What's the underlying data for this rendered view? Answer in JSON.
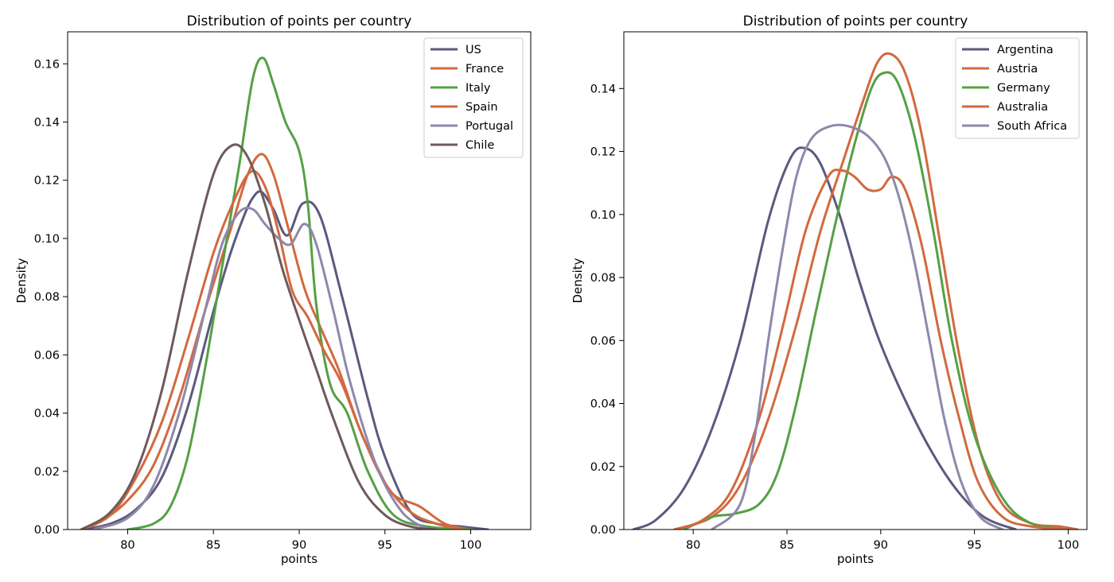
{
  "chart_data": [
    {
      "type": "line",
      "title": "Distribution of points per country",
      "xlabel": "points",
      "ylabel": "Density",
      "xlim": [
        76.5,
        103.5
      ],
      "ylim": [
        0,
        0.171
      ],
      "xticks": [
        80,
        85,
        90,
        95,
        100
      ],
      "yticks": [
        0.0,
        0.02,
        0.04,
        0.06,
        0.08,
        0.1,
        0.12,
        0.14,
        0.16
      ],
      "ytick_labels": [
        "0.00",
        "0.02",
        "0.04",
        "0.06",
        "0.08",
        "0.10",
        "0.12",
        "0.14",
        "0.16"
      ],
      "grid": false,
      "legend_position": "top-right",
      "series": [
        {
          "name": "US",
          "color": "#5a5a7e",
          "x": [
            77.3,
            79,
            80.5,
            82,
            83.5,
            85,
            86,
            86.8,
            87.3,
            87.8,
            88.5,
            89.3,
            90.2,
            91.2,
            92.5,
            94,
            95,
            96.5,
            98,
            99.5,
            101
          ],
          "y": [
            0.0,
            0.002,
            0.007,
            0.018,
            0.042,
            0.075,
            0.095,
            0.108,
            0.114,
            0.116,
            0.11,
            0.101,
            0.112,
            0.108,
            0.08,
            0.045,
            0.025,
            0.006,
            0.002,
            0.001,
            0.0
          ]
        },
        {
          "name": "France",
          "color": "#d2693e",
          "x": [
            77.3,
            78.5,
            80,
            81.5,
            83,
            84.5,
            86,
            87,
            87.8,
            88.5,
            89.3,
            90.3,
            91.2,
            92.3,
            93.5,
            94.5,
            95.5,
            97,
            98.5,
            100
          ],
          "y": [
            0.0,
            0.003,
            0.01,
            0.022,
            0.045,
            0.075,
            0.103,
            0.122,
            0.129,
            0.122,
            0.105,
            0.083,
            0.07,
            0.055,
            0.035,
            0.022,
            0.012,
            0.008,
            0.002,
            0.0
          ]
        },
        {
          "name": "Italy",
          "color": "#55a045",
          "x": [
            80,
            81.5,
            82.5,
            83.5,
            84.5,
            85.5,
            86.5,
            87.3,
            87.9,
            88.5,
            89.2,
            90,
            90.5,
            91,
            91.8,
            92.8,
            94,
            95.5,
            97.5,
            100
          ],
          "y": [
            0.0,
            0.002,
            0.008,
            0.025,
            0.055,
            0.09,
            0.125,
            0.155,
            0.162,
            0.153,
            0.14,
            0.13,
            0.112,
            0.077,
            0.05,
            0.04,
            0.02,
            0.005,
            0.001,
            0.0
          ]
        },
        {
          "name": "Spain",
          "color": "#d2693e",
          "x": [
            77.3,
            79,
            80.5,
            82,
            83.5,
            85,
            86.2,
            87.2,
            88,
            88.8,
            89.6,
            90.5,
            91.4,
            92.5,
            93.7,
            95,
            96.5,
            98,
            99.5
          ],
          "y": [
            0.0,
            0.005,
            0.018,
            0.037,
            0.065,
            0.095,
            0.113,
            0.123,
            0.118,
            0.102,
            0.082,
            0.073,
            0.062,
            0.05,
            0.032,
            0.016,
            0.006,
            0.002,
            0.0
          ]
        },
        {
          "name": "Portugal",
          "color": "#8e88ab",
          "x": [
            78,
            80,
            81.5,
            83,
            84.5,
            85.5,
            86.5,
            87.3,
            88,
            88.8,
            89.5,
            90.3,
            91,
            92,
            93,
            94.5,
            96,
            97.5
          ],
          "y": [
            0.0,
            0.004,
            0.015,
            0.04,
            0.075,
            0.098,
            0.109,
            0.11,
            0.105,
            0.1,
            0.098,
            0.105,
            0.098,
            0.075,
            0.05,
            0.022,
            0.006,
            0.0
          ]
        },
        {
          "name": "Chile",
          "color": "#6e5a5a",
          "x": [
            77.3,
            79,
            80.5,
            82,
            83.5,
            85,
            86.1,
            87,
            88,
            89,
            90,
            91,
            92,
            93.5,
            95,
            96.5,
            98
          ],
          "y": [
            0.0,
            0.006,
            0.02,
            0.048,
            0.088,
            0.122,
            0.132,
            0.128,
            0.112,
            0.09,
            0.072,
            0.055,
            0.038,
            0.016,
            0.005,
            0.001,
            0.0
          ]
        }
      ]
    },
    {
      "type": "line",
      "title": "Distribution of points per country",
      "xlabel": "points",
      "ylabel": "Density",
      "xlim": [
        76.3,
        101.0
      ],
      "ylim": [
        0,
        0.158
      ],
      "xticks": [
        80,
        85,
        90,
        95,
        100
      ],
      "yticks": [
        0.0,
        0.02,
        0.04,
        0.06,
        0.08,
        0.1,
        0.12,
        0.14
      ],
      "ytick_labels": [
        "0.00",
        "0.02",
        "0.04",
        "0.06",
        "0.08",
        "0.10",
        "0.12",
        "0.14"
      ],
      "grid": false,
      "legend_position": "top-right",
      "series": [
        {
          "name": "Argentina",
          "color": "#5a5a7e",
          "x": [
            76.8,
            78,
            79.5,
            81,
            82.5,
            84,
            85.2,
            86,
            86.8,
            87.8,
            88.8,
            89.8,
            91,
            92.5,
            94,
            95.5,
            97.2
          ],
          "y": [
            0.0,
            0.003,
            0.013,
            0.032,
            0.06,
            0.098,
            0.118,
            0.121,
            0.116,
            0.1,
            0.08,
            0.062,
            0.045,
            0.027,
            0.013,
            0.004,
            0.0
          ]
        },
        {
          "name": "Austria",
          "color": "#d2693e",
          "x": [
            79,
            81,
            82.5,
            84,
            85.5,
            86.8,
            88,
            89,
            89.8,
            90.5,
            91.3,
            92.2,
            93.2,
            94.2,
            95.3,
            96.5,
            98,
            99.5,
            100.5
          ],
          "y": [
            0.0,
            0.004,
            0.014,
            0.035,
            0.065,
            0.095,
            0.117,
            0.135,
            0.148,
            0.151,
            0.145,
            0.125,
            0.09,
            0.055,
            0.025,
            0.008,
            0.002,
            0.001,
            0.0
          ]
        },
        {
          "name": "Germany",
          "color": "#55a045",
          "x": [
            79.5,
            81,
            82.2,
            83.5,
            84.5,
            85.5,
            86.5,
            87.5,
            88.5,
            89.5,
            90.2,
            90.9,
            91.8,
            92.8,
            93.8,
            95,
            96.5,
            98,
            100
          ],
          "y": [
            0.0,
            0.004,
            0.005,
            0.008,
            0.018,
            0.04,
            0.068,
            0.095,
            0.12,
            0.14,
            0.145,
            0.142,
            0.125,
            0.095,
            0.06,
            0.03,
            0.01,
            0.002,
            0.0
          ]
        },
        {
          "name": "Australia",
          "color": "#d2693e",
          "x": [
            79,
            80.5,
            82,
            83.5,
            84.8,
            86,
            87.2,
            87.9,
            88.6,
            89.3,
            90,
            90.6,
            91.3,
            92.2,
            93.2,
            94.2,
            95.2,
            96.5,
            98,
            100
          ],
          "y": [
            0.0,
            0.003,
            0.012,
            0.035,
            0.065,
            0.095,
            0.112,
            0.114,
            0.112,
            0.108,
            0.108,
            0.112,
            0.108,
            0.09,
            0.06,
            0.035,
            0.015,
            0.004,
            0.001,
            0.0
          ]
        },
        {
          "name": "South Africa",
          "color": "#8e88ab",
          "x": [
            81,
            82.5,
            83.3,
            84,
            84.8,
            85.5,
            86.3,
            87.3,
            88.3,
            89.3,
            90.2,
            91,
            91.8,
            92.6,
            93.4,
            94.3,
            95.3,
            96.5
          ],
          "y": [
            0.0,
            0.008,
            0.03,
            0.06,
            0.09,
            0.112,
            0.124,
            0.128,
            0.128,
            0.125,
            0.118,
            0.105,
            0.085,
            0.06,
            0.035,
            0.015,
            0.004,
            0.0
          ]
        }
      ]
    }
  ]
}
